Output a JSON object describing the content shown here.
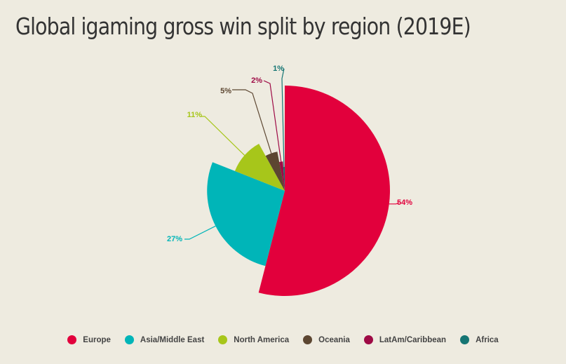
{
  "title": "Global igaming gross win split by region (2019E)",
  "chart_data": {
    "type": "pie",
    "variant": "variable-radius",
    "title": "Global igaming gross win split by region (2019E)",
    "label_format": "percent",
    "legend_position": "bottom",
    "slices": [
      {
        "name": "Europe",
        "value": 54,
        "label": "54%",
        "color": "#E2003C"
      },
      {
        "name": "Asia/Middle East",
        "value": 27,
        "label": "27%",
        "color": "#00B5B8"
      },
      {
        "name": "North America",
        "value": 11,
        "label": "11%",
        "color": "#A7C61A"
      },
      {
        "name": "Oceania",
        "value": 5,
        "label": "5%",
        "color": "#5C4631"
      },
      {
        "name": "LatAm/Caribbean",
        "value": 2,
        "label": "2%",
        "color": "#9E0A45"
      },
      {
        "name": "Africa",
        "value": 1,
        "label": "1%",
        "color": "#157573"
      }
    ]
  }
}
